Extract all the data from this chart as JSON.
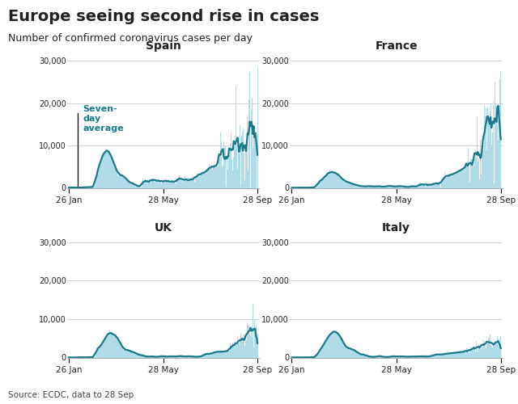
{
  "title": "Europe seeing second rise in cases",
  "subtitle": "Number of confirmed coronavirus cases per day",
  "source": "Source: ECDC, data to 28 Sep",
  "countries": [
    "Spain",
    "France",
    "UK",
    "Italy"
  ],
  "bar_color": "#b0dce8",
  "line_color": "#1a7a8a",
  "annotation_color": "#1a7a8a",
  "text_color": "#222222",
  "background_color": "#ffffff",
  "ytick_labels": [
    "0",
    "10,000",
    "20,000",
    "30,000"
  ],
  "ytick_vals": [
    0,
    10000,
    20000,
    30000
  ],
  "xtick_labels": [
    "26 Jan",
    "28 May",
    "28 Sep"
  ],
  "annotation_text": "Seven-\nday\naverage"
}
